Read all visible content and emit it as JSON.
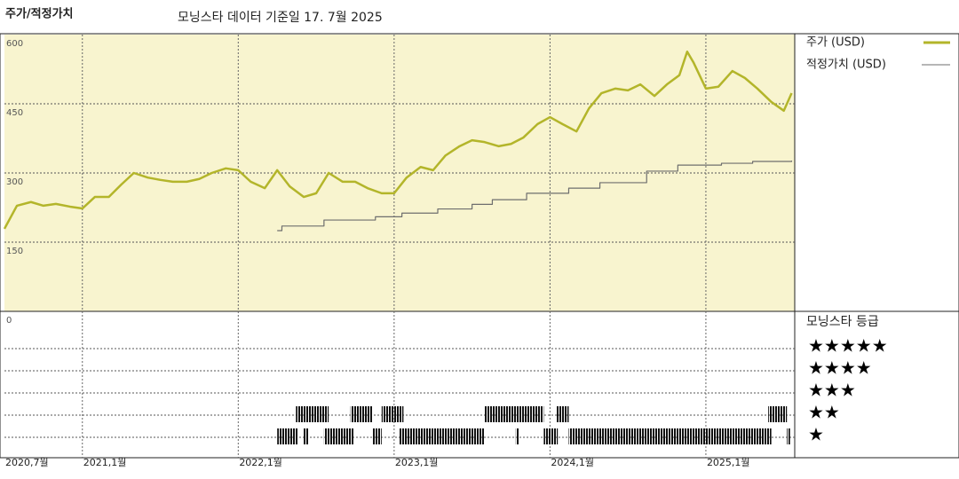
{
  "chart_data": {
    "type": "line",
    "title": "주가/적정가치",
    "subtitle": "모닝스타 데이터 기준일 17. 7월 2025",
    "xlim": [
      2020.5,
      2025.57
    ],
    "xticks": [
      {
        "value": 2020.5,
        "label": "2020,7월"
      },
      {
        "value": 2021,
        "label": "2021,1월"
      },
      {
        "value": 2022,
        "label": "2022,1월"
      },
      {
        "value": 2023,
        "label": "2023,1월"
      },
      {
        "value": 2024,
        "label": "2024,1월"
      },
      {
        "value": 2025,
        "label": "2025,1월"
      }
    ],
    "ylim": [
      0,
      600
    ],
    "yticks": [
      0,
      150,
      300,
      450,
      600
    ],
    "grid": true,
    "series": [
      {
        "name": "주가 (USD)",
        "color": "#b3b52a",
        "x": [
          2020.5,
          2020.58,
          2020.67,
          2020.75,
          2020.83,
          2020.92,
          2021.0,
          2021.08,
          2021.17,
          2021.25,
          2021.33,
          2021.42,
          2021.5,
          2021.58,
          2021.67,
          2021.75,
          2021.83,
          2021.92,
          2022.0,
          2022.08,
          2022.17,
          2022.25,
          2022.33,
          2022.42,
          2022.5,
          2022.58,
          2022.67,
          2022.75,
          2022.83,
          2022.92,
          2023.0,
          2023.08,
          2023.17,
          2023.25,
          2023.33,
          2023.42,
          2023.5,
          2023.58,
          2023.67,
          2023.75,
          2023.83,
          2023.92,
          2024.0,
          2024.08,
          2024.17,
          2024.25,
          2024.33,
          2024.42,
          2024.5,
          2024.58,
          2024.67,
          2024.75,
          2024.83,
          2024.88,
          2024.92,
          2025.0,
          2025.08,
          2025.17,
          2025.25,
          2025.33,
          2025.42,
          2025.5,
          2025.55
        ],
        "values": [
          179,
          229,
          237,
          229,
          233,
          227,
          223,
          248,
          248,
          275,
          300,
          290,
          285,
          281,
          281,
          287,
          300,
          310,
          306,
          281,
          267,
          306,
          271,
          248,
          256,
          300,
          281,
          281,
          267,
          256,
          256,
          290,
          313,
          306,
          338,
          358,
          371,
          367,
          358,
          363,
          377,
          406,
          421,
          406,
          390,
          440,
          473,
          483,
          479,
          492,
          467,
          492,
          512,
          563,
          540,
          483,
          487,
          521,
          506,
          483,
          454,
          435,
          473
        ]
      },
      {
        "name": "적정가치 (USD)",
        "color": "#6e6e6e",
        "step": true,
        "x": [
          2022.25,
          2022.28,
          2022.55,
          2022.88,
          2023.05,
          2023.28,
          2023.5,
          2023.63,
          2023.85,
          2024.12,
          2024.32,
          2024.62,
          2024.82,
          2025.1,
          2025.3,
          2025.55
        ],
        "values": [
          175,
          185,
          198,
          205,
          213,
          222,
          232,
          242,
          256,
          267,
          279,
          304,
          317,
          321,
          325,
          327
        ]
      }
    ],
    "rating_title": "모닝스타 등급",
    "rating_levels": [
      {
        "stars": 5,
        "label": "★★★★★"
      },
      {
        "stars": 4,
        "label": "★★★★"
      },
      {
        "stars": 3,
        "label": "★★★"
      },
      {
        "stars": 2,
        "label": "★★"
      },
      {
        "stars": 1,
        "label": "★"
      }
    ],
    "ratings": [
      {
        "stars": 2,
        "start": 2022.37,
        "end": 2022.58
      },
      {
        "stars": 2,
        "start": 2022.72,
        "end": 2022.86
      },
      {
        "stars": 2,
        "start": 2022.92,
        "end": 2023.06
      },
      {
        "stars": 2,
        "start": 2023.58,
        "end": 2023.96
      },
      {
        "stars": 2,
        "start": 2024.04,
        "end": 2024.12
      },
      {
        "stars": 2,
        "start": 2025.4,
        "end": 2025.52
      },
      {
        "stars": 1,
        "start": 2022.25,
        "end": 2022.38
      },
      {
        "stars": 1,
        "start": 2022.42,
        "end": 2022.45
      },
      {
        "stars": 1,
        "start": 2022.55,
        "end": 2022.74
      },
      {
        "stars": 1,
        "start": 2022.86,
        "end": 2022.92
      },
      {
        "stars": 1,
        "start": 2023.03,
        "end": 2023.58
      },
      {
        "stars": 1,
        "start": 2023.78,
        "end": 2023.8
      },
      {
        "stars": 1,
        "start": 2023.96,
        "end": 2024.05
      },
      {
        "stars": 1,
        "start": 2024.12,
        "end": 2025.42
      },
      {
        "stars": 1,
        "start": 2025.52,
        "end": 2025.54
      }
    ]
  }
}
